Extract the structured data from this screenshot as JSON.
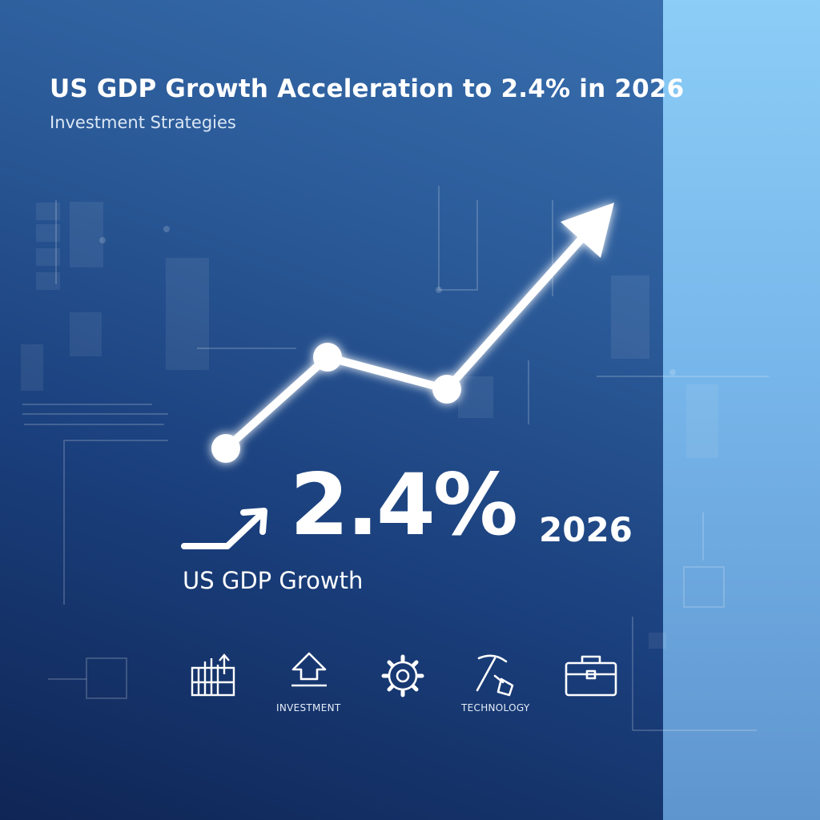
{
  "title": "US GDP Growth Acceleration to 2.4% in 2026",
  "subtitle": "Investment Strategies",
  "headline": {
    "value": "2.4%",
    "year": "2026",
    "label": "US GDP Growth"
  },
  "icons": [
    {
      "name": "bar-chart-up-icon",
      "label": ""
    },
    {
      "name": "upload-arrow-icon",
      "label": "INVESTMENT"
    },
    {
      "name": "gear-icon",
      "label": ""
    },
    {
      "name": "pickaxe-icon",
      "label": "TECHNOLOGY"
    },
    {
      "name": "briefcase-icon",
      "label": ""
    }
  ],
  "colors": {
    "background_dark": "#0f2555",
    "background_mid": "#2b5a98",
    "panel_light": "#8bcdf7",
    "foreground": "#ffffff"
  }
}
